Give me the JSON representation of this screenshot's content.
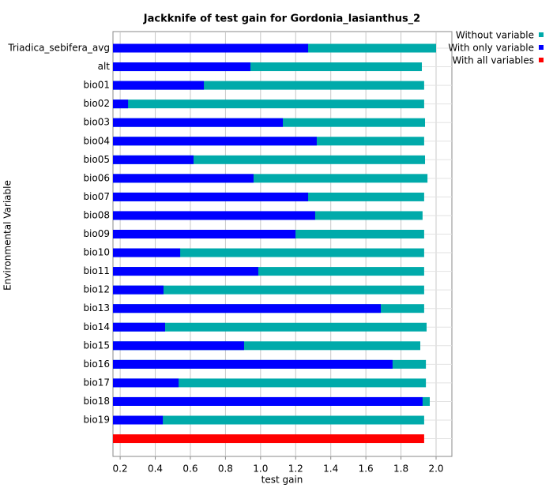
{
  "chart_data": {
    "type": "jackknife",
    "title": "Jackknife of test gain for Gordonia_lasianthus_2",
    "xlabel": "test gain",
    "ylabel": "Environmental Variable",
    "categories": [
      "Triadica_sebifera_avg",
      "alt",
      "bio01",
      "bio02",
      "bio03",
      "bio04",
      "bio05",
      "bio06",
      "bio07",
      "bio08",
      "bio09",
      "bio10",
      "bio11",
      "bio12",
      "bio13",
      "bio14",
      "bio15",
      "bio16",
      "bio17",
      "bio18",
      "bio19",
      null
    ],
    "series": [
      {
        "name": "Without variable",
        "color": "#00aaaa",
        "values": [
          2.0,
          1.919,
          1.932,
          1.932,
          1.937,
          1.932,
          1.937,
          1.951,
          1.932,
          1.923,
          1.932,
          1.932,
          1.932,
          1.932,
          1.932,
          1.946,
          1.91,
          1.942,
          1.942,
          1.964,
          1.932,
          null
        ]
      },
      {
        "name": "With only variable",
        "color": "#0000ff",
        "values": [
          1.271,
          0.942,
          0.677,
          0.245,
          1.127,
          1.32,
          0.618,
          0.96,
          1.271,
          1.311,
          1.199,
          0.542,
          0.987,
          0.447,
          1.685,
          0.456,
          0.906,
          1.752,
          0.533,
          1.923,
          0.443,
          null
        ]
      },
      {
        "name": "With all variables",
        "color": "#ff0000",
        "values": [
          null,
          null,
          null,
          null,
          null,
          null,
          null,
          null,
          null,
          null,
          null,
          null,
          null,
          null,
          null,
          null,
          null,
          null,
          null,
          null,
          null,
          1.932
        ]
      }
    ],
    "xlim": [
      0.159,
      2.09
    ],
    "xticks": [
      {
        "value": 0.2,
        "label": "0.2"
      },
      {
        "value": 0.4,
        "label": "0.4"
      },
      {
        "value": 0.6,
        "label": "0.6"
      },
      {
        "value": 0.8,
        "label": "0.8"
      },
      {
        "value": 1.0,
        "label": "1.0"
      },
      {
        "value": 1.2,
        "label": "1.2"
      },
      {
        "value": 1.4,
        "label": "1.4"
      },
      {
        "value": 1.6,
        "label": "1.6"
      },
      {
        "value": 1.8,
        "label": "1.8"
      },
      {
        "value": 2.0,
        "label": "2.0"
      }
    ],
    "grid": true,
    "legend": "top-right"
  }
}
